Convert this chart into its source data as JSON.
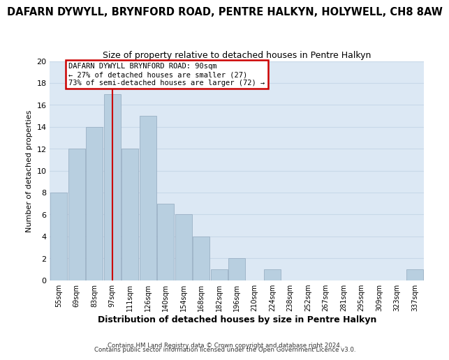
{
  "title": "DAFARN DYWYLL, BRYNFORD ROAD, PENTRE HALKYN, HOLYWELL, CH8 8AW",
  "subtitle": "Size of property relative to detached houses in Pentre Halkyn",
  "xlabel": "Distribution of detached houses by size in Pentre Halkyn",
  "ylabel": "Number of detached properties",
  "bin_labels": [
    "55sqm",
    "69sqm",
    "83sqm",
    "97sqm",
    "111sqm",
    "126sqm",
    "140sqm",
    "154sqm",
    "168sqm",
    "182sqm",
    "196sqm",
    "210sqm",
    "224sqm",
    "238sqm",
    "252sqm",
    "267sqm",
    "281sqm",
    "295sqm",
    "309sqm",
    "323sqm",
    "337sqm"
  ],
  "bar_heights": [
    8,
    12,
    14,
    17,
    12,
    15,
    7,
    6,
    4,
    1,
    2,
    0,
    1,
    0,
    0,
    0,
    0,
    0,
    0,
    0,
    1
  ],
  "bar_color": "#b8cfe0",
  "bar_edgecolor": "#9ab0c5",
  "vline_x_index": 3.0,
  "annotation_text": "DAFARN DYWYLL BRYNFORD ROAD: 90sqm\n← 27% of detached houses are smaller (27)\n73% of semi-detached houses are larger (72) →",
  "annotation_box_edgecolor": "#cc0000",
  "annotation_box_facecolor": "#ffffff",
  "vline_color": "#cc0000",
  "ylim": [
    0,
    20
  ],
  "yticks": [
    0,
    2,
    4,
    6,
    8,
    10,
    12,
    14,
    16,
    18,
    20
  ],
  "footer1": "Contains HM Land Registry data © Crown copyright and database right 2024.",
  "footer2": "Contains public sector information licensed under the Open Government Licence v3.0.",
  "title_fontsize": 10.5,
  "subtitle_fontsize": 9,
  "xlabel_fontsize": 9,
  "ylabel_fontsize": 8,
  "grid_color": "#c8d8e8",
  "background_color": "#dce8f4"
}
